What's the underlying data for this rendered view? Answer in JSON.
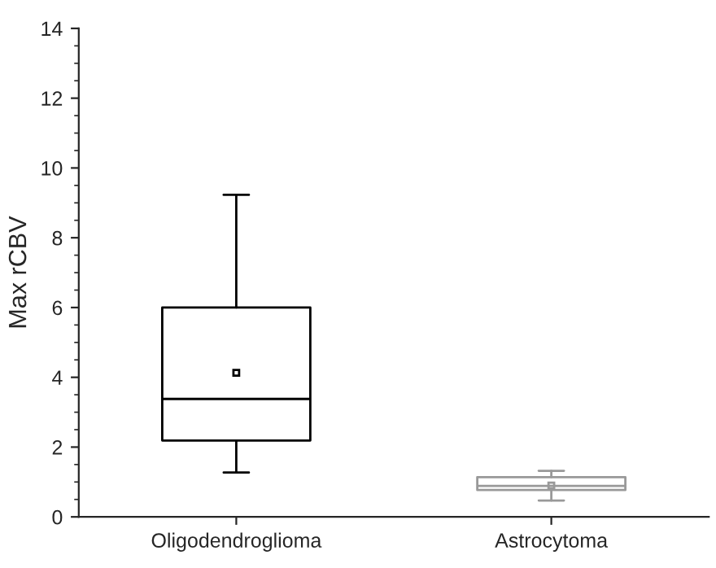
{
  "chart_data": {
    "type": "box",
    "ylabel": "Max rCBV",
    "categories": [
      "Oligodendroglioma",
      "Astrocytoma"
    ],
    "boxes": [
      {
        "low": 1.27,
        "q1": 2.19,
        "median": 3.38,
        "q3": 6.0,
        "high": 9.23,
        "mean": 4.13
      },
      {
        "low": 0.47,
        "q1": 0.77,
        "median": 0.89,
        "q3": 1.14,
        "high": 1.32,
        "mean": 0.9
      }
    ],
    "colors": [
      "#000000",
      "#999999"
    ],
    "ylim": [
      0,
      14
    ],
    "yticks": [
      0,
      2,
      4,
      6,
      8,
      10,
      12,
      14
    ],
    "grid": false,
    "marker": "square"
  }
}
